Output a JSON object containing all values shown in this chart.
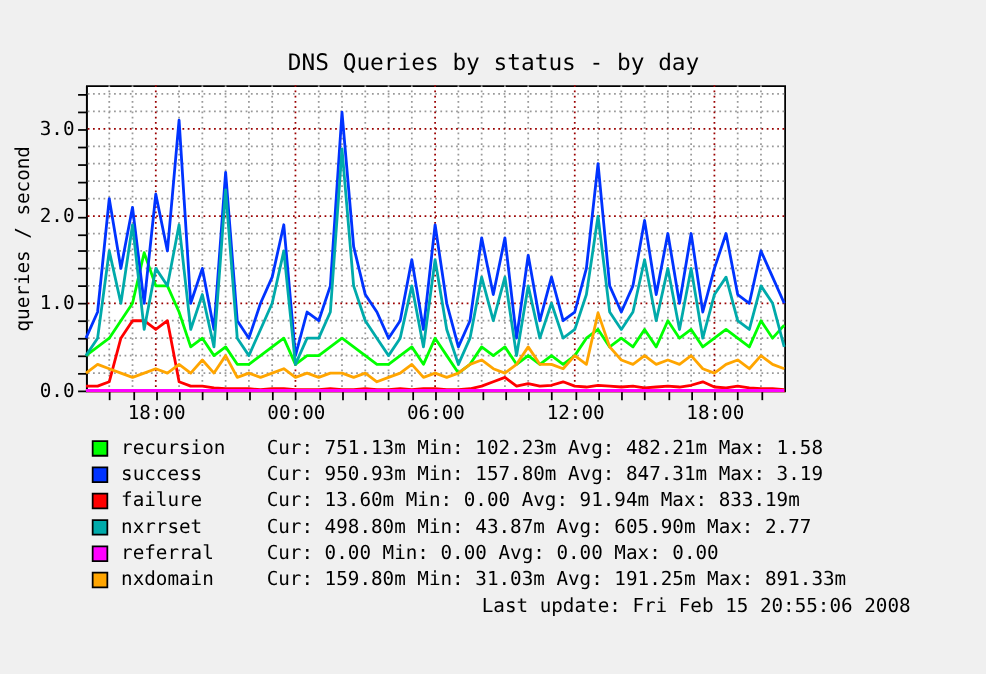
{
  "chart_data": {
    "type": "line",
    "title": "DNS Queries by status - by day",
    "ylabel": "queries / second",
    "x": [
      "2008-02-14T15:00",
      "2008-02-14T15:30",
      "2008-02-14T16:00",
      "2008-02-14T16:30",
      "2008-02-14T17:00",
      "2008-02-14T17:30",
      "2008-02-14T18:00",
      "2008-02-14T18:30",
      "2008-02-14T19:00",
      "2008-02-14T19:30",
      "2008-02-14T20:00",
      "2008-02-14T20:30",
      "2008-02-14T21:00",
      "2008-02-14T21:30",
      "2008-02-14T22:00",
      "2008-02-14T22:30",
      "2008-02-14T23:00",
      "2008-02-14T23:30",
      "2008-02-15T00:00",
      "2008-02-15T00:30",
      "2008-02-15T01:00",
      "2008-02-15T01:30",
      "2008-02-15T02:00",
      "2008-02-15T02:30",
      "2008-02-15T03:00",
      "2008-02-15T03:30",
      "2008-02-15T04:00",
      "2008-02-15T04:30",
      "2008-02-15T05:00",
      "2008-02-15T05:30",
      "2008-02-15T06:00",
      "2008-02-15T06:30",
      "2008-02-15T07:00",
      "2008-02-15T07:30",
      "2008-02-15T08:00",
      "2008-02-15T08:30",
      "2008-02-15T09:00",
      "2008-02-15T09:30",
      "2008-02-15T10:00",
      "2008-02-15T10:30",
      "2008-02-15T11:00",
      "2008-02-15T11:30",
      "2008-02-15T12:00",
      "2008-02-15T12:30",
      "2008-02-15T13:00",
      "2008-02-15T13:30",
      "2008-02-15T14:00",
      "2008-02-15T14:30",
      "2008-02-15T15:00",
      "2008-02-15T15:30",
      "2008-02-15T16:00",
      "2008-02-15T16:30",
      "2008-02-15T17:00",
      "2008-02-15T17:30",
      "2008-02-15T18:00",
      "2008-02-15T18:30",
      "2008-02-15T19:00",
      "2008-02-15T19:30",
      "2008-02-15T20:00",
      "2008-02-15T20:30",
      "2008-02-15T21:00"
    ],
    "xlim": [
      "2008-02-14T15:00",
      "2008-02-15T21:00"
    ],
    "xticks": [
      {
        "value": "2008-02-14T16:00",
        "label": null
      },
      {
        "value": "2008-02-14T17:00",
        "label": null
      },
      {
        "value": "2008-02-14T18:00",
        "label": "18:00"
      },
      {
        "value": "2008-02-14T19:00",
        "label": null
      },
      {
        "value": "2008-02-14T20:00",
        "label": null
      },
      {
        "value": "2008-02-14T21:00",
        "label": null
      },
      {
        "value": "2008-02-14T22:00",
        "label": null
      },
      {
        "value": "2008-02-14T23:00",
        "label": null
      },
      {
        "value": "2008-02-15T00:00",
        "label": "00:00"
      },
      {
        "value": "2008-02-15T01:00",
        "label": null
      },
      {
        "value": "2008-02-15T02:00",
        "label": null
      },
      {
        "value": "2008-02-15T03:00",
        "label": null
      },
      {
        "value": "2008-02-15T04:00",
        "label": null
      },
      {
        "value": "2008-02-15T05:00",
        "label": null
      },
      {
        "value": "2008-02-15T06:00",
        "label": "06:00"
      },
      {
        "value": "2008-02-15T07:00",
        "label": null
      },
      {
        "value": "2008-02-15T08:00",
        "label": null
      },
      {
        "value": "2008-02-15T09:00",
        "label": null
      },
      {
        "value": "2008-02-15T10:00",
        "label": null
      },
      {
        "value": "2008-02-15T11:00",
        "label": null
      },
      {
        "value": "2008-02-15T12:00",
        "label": "12:00"
      },
      {
        "value": "2008-02-15T13:00",
        "label": null
      },
      {
        "value": "2008-02-15T14:00",
        "label": null
      },
      {
        "value": "2008-02-15T15:00",
        "label": null
      },
      {
        "value": "2008-02-15T16:00",
        "label": null
      },
      {
        "value": "2008-02-15T17:00",
        "label": null
      },
      {
        "value": "2008-02-15T18:00",
        "label": "18:00"
      },
      {
        "value": "2008-02-15T19:00",
        "label": null
      },
      {
        "value": "2008-02-15T20:00",
        "label": null
      }
    ],
    "ylim": [
      0,
      3.5
    ],
    "yticks": [
      {
        "value": 0,
        "label": "0.0"
      },
      {
        "value": 0.2,
        "label": null
      },
      {
        "value": 0.4,
        "label": null
      },
      {
        "value": 0.6,
        "label": null
      },
      {
        "value": 0.8,
        "label": null
      },
      {
        "value": 1,
        "label": "1.0"
      },
      {
        "value": 1.2,
        "label": null
      },
      {
        "value": 1.4,
        "label": null
      },
      {
        "value": 1.6,
        "label": null
      },
      {
        "value": 1.8,
        "label": null
      },
      {
        "value": 2,
        "label": "2.0"
      },
      {
        "value": 2.2,
        "label": null
      },
      {
        "value": 2.4,
        "label": null
      },
      {
        "value": 2.6,
        "label": null
      },
      {
        "value": 2.8,
        "label": null
      },
      {
        "value": 3,
        "label": "3.0"
      },
      {
        "value": 3.2,
        "label": null
      },
      {
        "value": 3.4,
        "label": null
      }
    ],
    "grid": true,
    "legend": "bottom",
    "line_style": "solid",
    "marker": "none",
    "series": [
      {
        "name": "recursion",
        "color": "#00ff00",
        "values": [
          0.4,
          0.5,
          0.6,
          0.8,
          1.0,
          1.58,
          1.2,
          1.2,
          0.9,
          0.5,
          0.6,
          0.4,
          0.5,
          0.3,
          0.3,
          0.4,
          0.5,
          0.6,
          0.3,
          0.4,
          0.4,
          0.5,
          0.6,
          0.5,
          0.4,
          0.3,
          0.3,
          0.4,
          0.5,
          0.3,
          0.6,
          0.4,
          0.2,
          0.3,
          0.5,
          0.4,
          0.5,
          0.3,
          0.4,
          0.3,
          0.4,
          0.3,
          0.4,
          0.6,
          0.7,
          0.5,
          0.6,
          0.5,
          0.7,
          0.5,
          0.8,
          0.6,
          0.7,
          0.5,
          0.6,
          0.7,
          0.6,
          0.5,
          0.8,
          0.6,
          0.75
        ]
      },
      {
        "name": "success",
        "color": "#0033ff",
        "values": [
          0.6,
          0.9,
          2.2,
          1.4,
          2.1,
          1.0,
          2.25,
          1.6,
          3.1,
          1.0,
          1.4,
          0.7,
          2.5,
          0.8,
          0.6,
          1.0,
          1.3,
          1.9,
          0.4,
          0.9,
          0.8,
          1.2,
          3.19,
          1.65,
          1.1,
          0.9,
          0.6,
          0.8,
          1.5,
          0.7,
          1.9,
          1.0,
          0.5,
          0.8,
          1.75,
          1.1,
          1.75,
          0.6,
          1.55,
          0.8,
          1.3,
          0.8,
          0.9,
          1.4,
          2.6,
          1.2,
          0.9,
          1.2,
          1.95,
          1.1,
          1.8,
          1.0,
          1.8,
          0.9,
          1.4,
          1.8,
          1.1,
          1.0,
          1.6,
          1.3,
          1.0
        ]
      },
      {
        "name": "failure",
        "color": "#ff0000",
        "values": [
          0.05,
          0.05,
          0.1,
          0.6,
          0.8,
          0.8,
          0.7,
          0.8,
          0.1,
          0.05,
          0.05,
          0.03,
          0.02,
          0.02,
          0.02,
          0.01,
          0.02,
          0.02,
          0.01,
          0.01,
          0.01,
          0.02,
          0.01,
          0.01,
          0.02,
          0.01,
          0.01,
          0.02,
          0.01,
          0.02,
          0.02,
          0.01,
          0.01,
          0.02,
          0.05,
          0.1,
          0.15,
          0.05,
          0.08,
          0.05,
          0.06,
          0.1,
          0.05,
          0.04,
          0.06,
          0.05,
          0.04,
          0.05,
          0.03,
          0.04,
          0.05,
          0.04,
          0.06,
          0.1,
          0.04,
          0.03,
          0.05,
          0.03,
          0.02,
          0.02,
          0.01
        ]
      },
      {
        "name": "nxrrset",
        "color": "#00aaaa",
        "values": [
          0.4,
          0.6,
          1.6,
          1.0,
          1.9,
          0.7,
          1.4,
          1.2,
          1.9,
          0.7,
          1.1,
          0.5,
          2.3,
          0.6,
          0.4,
          0.7,
          1.0,
          1.6,
          0.3,
          0.6,
          0.6,
          0.9,
          2.77,
          1.2,
          0.8,
          0.6,
          0.4,
          0.6,
          1.2,
          0.5,
          1.5,
          0.7,
          0.3,
          0.6,
          1.3,
          0.8,
          1.3,
          0.4,
          1.2,
          0.6,
          1.0,
          0.6,
          0.7,
          1.1,
          2.0,
          0.9,
          0.7,
          0.9,
          1.5,
          0.8,
          1.4,
          0.7,
          1.4,
          0.6,
          1.1,
          1.3,
          0.8,
          0.7,
          1.2,
          1.0,
          0.5
        ]
      },
      {
        "name": "referral",
        "color": "#ff00ff",
        "values": [
          0,
          0,
          0,
          0,
          0,
          0,
          0,
          0,
          0,
          0,
          0,
          0,
          0,
          0,
          0,
          0,
          0,
          0,
          0,
          0,
          0,
          0,
          0,
          0,
          0,
          0,
          0,
          0,
          0,
          0,
          0,
          0,
          0,
          0,
          0,
          0,
          0,
          0,
          0,
          0,
          0,
          0,
          0,
          0,
          0,
          0,
          0,
          0,
          0,
          0,
          0,
          0,
          0,
          0,
          0,
          0,
          0,
          0,
          0,
          0,
          0
        ]
      },
      {
        "name": "nxdomain",
        "color": "#ffa500",
        "values": [
          0.2,
          0.3,
          0.25,
          0.2,
          0.15,
          0.2,
          0.25,
          0.2,
          0.3,
          0.2,
          0.35,
          0.2,
          0.4,
          0.15,
          0.2,
          0.15,
          0.2,
          0.25,
          0.15,
          0.2,
          0.15,
          0.2,
          0.2,
          0.15,
          0.2,
          0.1,
          0.15,
          0.2,
          0.3,
          0.15,
          0.2,
          0.15,
          0.2,
          0.3,
          0.35,
          0.25,
          0.2,
          0.3,
          0.5,
          0.3,
          0.3,
          0.25,
          0.4,
          0.3,
          0.89,
          0.5,
          0.35,
          0.3,
          0.4,
          0.3,
          0.35,
          0.3,
          0.4,
          0.25,
          0.2,
          0.3,
          0.35,
          0.25,
          0.4,
          0.3,
          0.25
        ]
      }
    ],
    "annotations": [
      "Cur:  751.13m   Min:  102.23m   Avg:  482.21m   Max:     1.58",
      "Cur:  950.93m   Min:  157.80m   Avg:  847.31m   Max:     3.19",
      "Cur:   13.60m   Min:     0.00   Avg:   91.94m   Max:  833.19m",
      "Cur:  498.80m   Min:   43.87m   Avg:  605.90m   Max:     2.77",
      "Cur:     0.00   Min:     0.00   Avg:     0.00   Max:     0.00",
      "Cur:  159.80m   Min:   31.03m   Avg:  191.25m   Max:  891.33m",
      "Last update: Fri Feb 15 20:55:06 2008"
    ]
  }
}
